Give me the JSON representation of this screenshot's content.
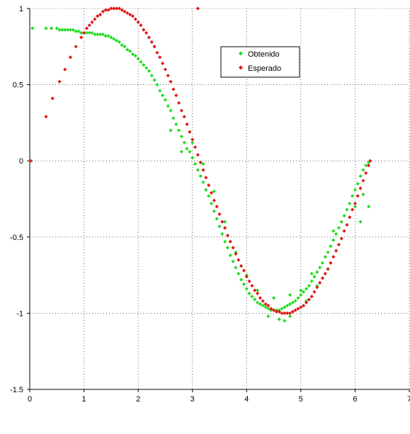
{
  "chart_data": {
    "type": "scatter",
    "title": "",
    "xlabel": "",
    "ylabel": "",
    "xlim": [
      0,
      7
    ],
    "ylim": [
      -1.5,
      1
    ],
    "x_ticks": [
      "0",
      "1",
      "2",
      "3",
      "4",
      "5",
      "6",
      "7"
    ],
    "y_ticks": [
      "1",
      "0.5",
      "0",
      "-0.5",
      "-1",
      "-1.5"
    ],
    "grid": true,
    "legend_position": "top-right",
    "series": [
      {
        "name": "Obtenido",
        "color": "#22dd22",
        "marker": "diamond",
        "points": [
          [
            0.05,
            0.87
          ],
          [
            0.3,
            0.87
          ],
          [
            0.4,
            0.87
          ],
          [
            0.5,
            0.87
          ],
          [
            0.55,
            0.86
          ],
          [
            0.6,
            0.86
          ],
          [
            0.65,
            0.86
          ],
          [
            0.7,
            0.86
          ],
          [
            0.75,
            0.86
          ],
          [
            0.8,
            0.86
          ],
          [
            0.85,
            0.85
          ],
          [
            0.9,
            0.85
          ],
          [
            0.95,
            0.84
          ],
          [
            1.0,
            0.84
          ],
          [
            1.05,
            0.84
          ],
          [
            1.1,
            0.84
          ],
          [
            1.15,
            0.84
          ],
          [
            1.2,
            0.83
          ],
          [
            1.25,
            0.83
          ],
          [
            1.3,
            0.83
          ],
          [
            1.35,
            0.83
          ],
          [
            1.4,
            0.82
          ],
          [
            1.45,
            0.82
          ],
          [
            1.5,
            0.81
          ],
          [
            1.55,
            0.8
          ],
          [
            1.6,
            0.79
          ],
          [
            1.65,
            0.78
          ],
          [
            1.7,
            0.76
          ],
          [
            1.75,
            0.75
          ],
          [
            1.8,
            0.73
          ],
          [
            1.85,
            0.72
          ],
          [
            1.9,
            0.7
          ],
          [
            1.95,
            0.69
          ],
          [
            2.0,
            0.67
          ],
          [
            2.05,
            0.65
          ],
          [
            2.1,
            0.63
          ],
          [
            2.15,
            0.61
          ],
          [
            2.2,
            0.59
          ],
          [
            2.25,
            0.56
          ],
          [
            2.3,
            0.53
          ],
          [
            2.35,
            0.5
          ],
          [
            2.4,
            0.46
          ],
          [
            2.45,
            0.43
          ],
          [
            2.5,
            0.4
          ],
          [
            2.55,
            0.36
          ],
          [
            2.6,
            0.33
          ],
          [
            2.65,
            0.28
          ],
          [
            2.7,
            0.24
          ],
          [
            2.75,
            0.2
          ],
          [
            2.8,
            0.16
          ],
          [
            2.85,
            0.12
          ],
          [
            2.9,
            0.08
          ],
          [
            2.95,
            0.06
          ],
          [
            3.0,
            0.02
          ],
          [
            3.05,
            -0.02
          ],
          [
            3.1,
            -0.06
          ],
          [
            3.15,
            -0.1
          ],
          [
            3.2,
            -0.14
          ],
          [
            3.25,
            -0.19
          ],
          [
            3.3,
            -0.23
          ],
          [
            3.35,
            -0.28
          ],
          [
            3.4,
            -0.33
          ],
          [
            3.45,
            -0.38
          ],
          [
            3.5,
            -0.43
          ],
          [
            3.55,
            -0.48
          ],
          [
            3.6,
            -0.53
          ],
          [
            3.65,
            -0.57
          ],
          [
            3.7,
            -0.62
          ],
          [
            3.75,
            -0.66
          ],
          [
            3.8,
            -0.7
          ],
          [
            3.85,
            -0.74
          ],
          [
            3.9,
            -0.78
          ],
          [
            3.95,
            -0.81
          ],
          [
            4.0,
            -0.84
          ],
          [
            4.05,
            -0.87
          ],
          [
            4.1,
            -0.89
          ],
          [
            4.15,
            -0.91
          ],
          [
            4.2,
            -0.93
          ],
          [
            4.25,
            -0.94
          ],
          [
            4.3,
            -0.95
          ],
          [
            4.35,
            -0.96
          ],
          [
            4.4,
            -0.97
          ],
          [
            4.45,
            -0.98
          ],
          [
            4.5,
            -0.98
          ],
          [
            4.55,
            -0.98
          ],
          [
            4.6,
            -0.98
          ],
          [
            4.65,
            -0.97
          ],
          [
            4.7,
            -0.96
          ],
          [
            4.75,
            -0.95
          ],
          [
            4.8,
            -0.94
          ],
          [
            4.85,
            -0.93
          ],
          [
            4.9,
            -0.92
          ],
          [
            4.95,
            -0.9
          ],
          [
            5.0,
            -0.88
          ],
          [
            5.05,
            -0.86
          ],
          [
            5.1,
            -0.84
          ],
          [
            5.15,
            -0.82
          ],
          [
            5.2,
            -0.79
          ],
          [
            5.25,
            -0.76
          ],
          [
            5.3,
            -0.73
          ],
          [
            5.35,
            -0.7
          ],
          [
            5.4,
            -0.67
          ],
          [
            5.45,
            -0.63
          ],
          [
            5.5,
            -0.6
          ],
          [
            5.55,
            -0.56
          ],
          [
            5.6,
            -0.52
          ],
          [
            5.65,
            -0.48
          ],
          [
            5.7,
            -0.44
          ],
          [
            5.75,
            -0.4
          ],
          [
            5.8,
            -0.36
          ],
          [
            5.85,
            -0.32
          ],
          [
            5.9,
            -0.28
          ],
          [
            5.95,
            -0.23
          ],
          [
            6.0,
            -0.19
          ],
          [
            6.05,
            -0.15
          ],
          [
            6.1,
            -0.1
          ],
          [
            6.15,
            -0.06
          ],
          [
            6.2,
            -0.03
          ],
          [
            6.25,
            -0.01
          ],
          [
            2.6,
            0.2
          ],
          [
            2.8,
            0.06
          ],
          [
            3.0,
            0.12
          ],
          [
            3.2,
            -0.02
          ],
          [
            3.4,
            -0.2
          ],
          [
            3.6,
            -0.4
          ],
          [
            3.8,
            -0.6
          ],
          [
            4.0,
            -0.75
          ],
          [
            4.2,
            -0.85
          ],
          [
            4.5,
            -0.9
          ],
          [
            4.8,
            -0.88
          ],
          [
            5.0,
            -0.85
          ],
          [
            5.2,
            -0.74
          ],
          [
            5.6,
            -0.46
          ],
          [
            6.0,
            -0.3
          ],
          [
            6.15,
            -0.22
          ],
          [
            6.25,
            -0.3
          ],
          [
            6.1,
            -0.4
          ],
          [
            4.4,
            -1.02
          ],
          [
            4.6,
            -1.04
          ],
          [
            4.7,
            -1.05
          ],
          [
            4.8,
            -1.02
          ],
          [
            5.1,
            -0.92
          ],
          [
            5.3,
            -0.82
          ]
        ]
      },
      {
        "name": "Esperado",
        "color": "#dd1a1a",
        "marker": "diamond",
        "points": [
          [
            0.02,
            0.0
          ],
          [
            0.3,
            0.29
          ],
          [
            0.42,
            0.41
          ],
          [
            0.55,
            0.52
          ],
          [
            0.65,
            0.6
          ],
          [
            0.75,
            0.68
          ],
          [
            0.85,
            0.75
          ],
          [
            0.95,
            0.81
          ],
          [
            1.0,
            0.84
          ],
          [
            1.05,
            0.87
          ],
          [
            1.1,
            0.89
          ],
          [
            1.15,
            0.91
          ],
          [
            1.2,
            0.93
          ],
          [
            1.25,
            0.95
          ],
          [
            1.3,
            0.96
          ],
          [
            1.35,
            0.98
          ],
          [
            1.4,
            0.99
          ],
          [
            1.45,
            0.99
          ],
          [
            1.5,
            1.0
          ],
          [
            1.55,
            1.0
          ],
          [
            1.6,
            1.0
          ],
          [
            1.65,
            1.0
          ],
          [
            1.7,
            0.99
          ],
          [
            1.75,
            0.98
          ],
          [
            1.8,
            0.97
          ],
          [
            1.85,
            0.96
          ],
          [
            1.9,
            0.95
          ],
          [
            1.95,
            0.93
          ],
          [
            2.0,
            0.91
          ],
          [
            2.05,
            0.89
          ],
          [
            2.1,
            0.86
          ],
          [
            2.15,
            0.84
          ],
          [
            2.2,
            0.81
          ],
          [
            2.25,
            0.78
          ],
          [
            2.3,
            0.75
          ],
          [
            2.35,
            0.71
          ],
          [
            2.4,
            0.68
          ],
          [
            2.45,
            0.64
          ],
          [
            2.5,
            0.6
          ],
          [
            2.55,
            0.56
          ],
          [
            2.6,
            0.52
          ],
          [
            2.65,
            0.47
          ],
          [
            2.7,
            0.43
          ],
          [
            2.75,
            0.38
          ],
          [
            2.8,
            0.33
          ],
          [
            2.85,
            0.29
          ],
          [
            2.9,
            0.24
          ],
          [
            2.95,
            0.19
          ],
          [
            3.0,
            0.14
          ],
          [
            3.05,
            0.09
          ],
          [
            3.1,
            0.04
          ],
          [
            3.15,
            -0.01
          ],
          [
            3.2,
            -0.06
          ],
          [
            3.25,
            -0.11
          ],
          [
            3.3,
            -0.16
          ],
          [
            3.35,
            -0.21
          ],
          [
            3.4,
            -0.26
          ],
          [
            3.45,
            -0.3
          ],
          [
            3.5,
            -0.35
          ],
          [
            3.55,
            -0.4
          ],
          [
            3.6,
            -0.44
          ],
          [
            3.65,
            -0.49
          ],
          [
            3.7,
            -0.53
          ],
          [
            3.75,
            -0.57
          ],
          [
            3.8,
            -0.61
          ],
          [
            3.85,
            -0.65
          ],
          [
            3.9,
            -0.69
          ],
          [
            3.95,
            -0.72
          ],
          [
            4.0,
            -0.76
          ],
          [
            4.05,
            -0.79
          ],
          [
            4.1,
            -0.82
          ],
          [
            4.15,
            -0.85
          ],
          [
            4.2,
            -0.87
          ],
          [
            4.25,
            -0.9
          ],
          [
            4.3,
            -0.92
          ],
          [
            4.35,
            -0.94
          ],
          [
            4.4,
            -0.95
          ],
          [
            4.45,
            -0.97
          ],
          [
            4.5,
            -0.98
          ],
          [
            4.55,
            -0.99
          ],
          [
            4.6,
            -0.99
          ],
          [
            4.65,
            -1.0
          ],
          [
            4.7,
            -1.0
          ],
          [
            4.75,
            -1.0
          ],
          [
            4.8,
            -1.0
          ],
          [
            4.85,
            -0.99
          ],
          [
            4.9,
            -0.98
          ],
          [
            4.95,
            -0.97
          ],
          [
            5.0,
            -0.96
          ],
          [
            5.05,
            -0.95
          ],
          [
            5.1,
            -0.93
          ],
          [
            5.15,
            -0.91
          ],
          [
            5.2,
            -0.89
          ],
          [
            5.25,
            -0.86
          ],
          [
            5.3,
            -0.83
          ],
          [
            5.35,
            -0.8
          ],
          [
            5.4,
            -0.77
          ],
          [
            5.45,
            -0.74
          ],
          [
            5.5,
            -0.71
          ],
          [
            5.55,
            -0.67
          ],
          [
            5.6,
            -0.63
          ],
          [
            5.65,
            -0.59
          ],
          [
            5.7,
            -0.55
          ],
          [
            5.75,
            -0.51
          ],
          [
            5.8,
            -0.46
          ],
          [
            5.85,
            -0.42
          ],
          [
            5.9,
            -0.37
          ],
          [
            5.95,
            -0.32
          ],
          [
            6.0,
            -0.28
          ],
          [
            6.05,
            -0.23
          ],
          [
            6.1,
            -0.18
          ],
          [
            6.15,
            -0.13
          ],
          [
            6.2,
            -0.08
          ],
          [
            6.25,
            -0.03
          ],
          [
            6.28,
            0.0
          ],
          [
            3.1,
            1.0
          ]
        ]
      }
    ]
  },
  "legend": {
    "obtenido_label": "Obtenido",
    "esperado_label": "Esperado"
  }
}
